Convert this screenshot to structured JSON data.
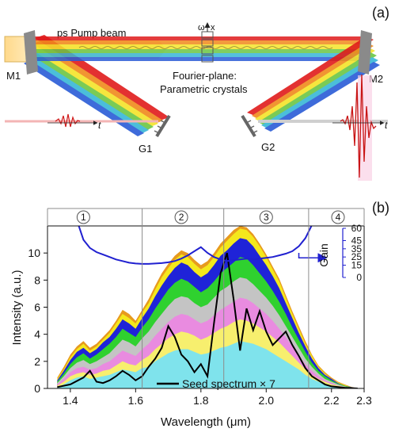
{
  "panel_a": {
    "label": "(a)",
    "pump_label": "ps Pump beam",
    "fourier_label_line1": "Fourier-plane:",
    "fourier_label_line2": "Parametric crystals",
    "axis_omega": "ω",
    "axis_x": "x",
    "m1": "M1",
    "m2": "M2",
    "g1": "G1",
    "g2": "G2",
    "time_symbol": "t",
    "colors": {
      "pump": "#ffd27f",
      "red": "#e01b1b",
      "orange": "#f08a1c",
      "yellow": "#f5e42a",
      "green": "#6cc644",
      "cyan": "#38b7d6",
      "blue": "#2a5bd7",
      "grating": "#7a7a7a"
    }
  },
  "chart_data": {
    "type": "area",
    "panel_label": "(b)",
    "xlabel": "Wavelength (μm)",
    "ylabel": "Intensity (a.u.)",
    "secondary_ylabel": "Gain",
    "xlim": [
      1.33,
      2.3
    ],
    "ylim": [
      0,
      12
    ],
    "x_ticks": [
      "1.4",
      "1.6",
      "1.8",
      "2.0",
      "2.2",
      "2.3"
    ],
    "x_tick_values": [
      1.4,
      1.6,
      1.8,
      2.0,
      2.2,
      2.3
    ],
    "y_ticks": [
      "0",
      "2",
      "4",
      "6",
      "8",
      "10"
    ],
    "y_tick_values": [
      0,
      2,
      4,
      6,
      8,
      10
    ],
    "gain_ticks": [
      "0",
      "15",
      "25",
      "35",
      "45",
      "60"
    ],
    "gain_tick_values": [
      0,
      15,
      25,
      35,
      45,
      60
    ],
    "section_lines": [
      1.62,
      1.87,
      2.13
    ],
    "section_labels": [
      "1",
      "2",
      "3",
      "4"
    ],
    "section_label_x": [
      1.44,
      1.74,
      2.0,
      2.22
    ],
    "legend": "Seed spectrum × 7",
    "x": [
      1.36,
      1.38,
      1.4,
      1.42,
      1.44,
      1.46,
      1.48,
      1.5,
      1.52,
      1.54,
      1.56,
      1.58,
      1.6,
      1.62,
      1.64,
      1.66,
      1.68,
      1.7,
      1.72,
      1.74,
      1.76,
      1.78,
      1.8,
      1.82,
      1.84,
      1.86,
      1.88,
      1.9,
      1.92,
      1.94,
      1.96,
      1.98,
      2.0,
      2.02,
      2.04,
      2.06,
      2.08,
      2.1,
      2.12,
      2.14,
      2.16,
      2.18,
      2.2,
      2.22,
      2.24,
      2.26,
      2.28
    ],
    "bands": [
      {
        "name": "cyan",
        "color": "#7fe3ec",
        "values": [
          0.1,
          0.3,
          0.6,
          0.8,
          0.9,
          0.7,
          0.8,
          0.9,
          1.0,
          1.2,
          1.4,
          1.3,
          1.2,
          1.5,
          1.6,
          2.0,
          2.3,
          2.6,
          2.8,
          2.9,
          2.9,
          2.7,
          2.5,
          2.6,
          2.8,
          3.0,
          3.1,
          3.3,
          3.5,
          3.4,
          3.3,
          3.1,
          2.9,
          2.6,
          2.3,
          2.0,
          1.7,
          1.4,
          1.0,
          0.7,
          0.5,
          0.3,
          0.2,
          0.1,
          0.05,
          0.02,
          0.0
        ]
      },
      {
        "name": "yellow",
        "color": "#f7ef6e",
        "values": [
          0.2,
          0.5,
          0.9,
          1.1,
          1.2,
          1.0,
          1.1,
          1.3,
          1.4,
          1.7,
          2.0,
          1.8,
          1.7,
          2.1,
          2.4,
          2.9,
          3.3,
          3.7,
          4.0,
          4.2,
          4.1,
          3.9,
          3.6,
          3.8,
          4.1,
          4.4,
          4.6,
          4.9,
          5.1,
          5.0,
          4.8,
          4.5,
          4.2,
          3.8,
          3.4,
          2.9,
          2.4,
          1.9,
          1.4,
          1.0,
          0.7,
          0.5,
          0.3,
          0.2,
          0.1,
          0.05,
          0.0
        ]
      },
      {
        "name": "pink",
        "color": "#e98be0",
        "values": [
          0.3,
          0.7,
          1.2,
          1.5,
          1.6,
          1.4,
          1.5,
          1.8,
          2.0,
          2.4,
          2.8,
          2.6,
          2.4,
          2.9,
          3.3,
          3.9,
          4.4,
          4.9,
          5.3,
          5.5,
          5.4,
          5.1,
          4.8,
          5.0,
          5.4,
          5.8,
          6.1,
          6.4,
          6.7,
          6.6,
          6.3,
          5.9,
          5.5,
          5.0,
          4.4,
          3.8,
          3.1,
          2.4,
          1.8,
          1.3,
          0.9,
          0.6,
          0.4,
          0.2,
          0.1,
          0.05,
          0.0
        ]
      },
      {
        "name": "gray",
        "color": "#c4c4c4",
        "values": [
          0.4,
          0.9,
          1.5,
          1.9,
          2.1,
          1.8,
          2.0,
          2.3,
          2.6,
          3.1,
          3.6,
          3.4,
          3.1,
          3.7,
          4.2,
          4.9,
          5.5,
          6.1,
          6.6,
          6.8,
          6.7,
          6.3,
          6.0,
          6.2,
          6.7,
          7.2,
          7.5,
          7.9,
          8.2,
          8.1,
          7.7,
          7.2,
          6.7,
          6.1,
          5.4,
          4.6,
          3.8,
          3.0,
          2.2,
          1.6,
          1.1,
          0.7,
          0.5,
          0.3,
          0.15,
          0.05,
          0.0
        ]
      },
      {
        "name": "green",
        "color": "#2fd12f",
        "values": [
          0.5,
          1.1,
          1.8,
          2.3,
          2.6,
          2.2,
          2.5,
          2.9,
          3.3,
          3.8,
          4.4,
          4.1,
          3.8,
          4.5,
          5.1,
          5.9,
          6.6,
          7.3,
          7.8,
          8.1,
          7.9,
          7.5,
          7.1,
          7.4,
          7.9,
          8.5,
          8.9,
          9.3,
          9.7,
          9.6,
          9.1,
          8.5,
          7.9,
          7.2,
          6.4,
          5.5,
          4.5,
          3.6,
          2.7,
          1.9,
          1.3,
          0.9,
          0.6,
          0.35,
          0.2,
          0.08,
          0.0
        ]
      },
      {
        "name": "blue",
        "color": "#1f23d8",
        "values": [
          0.6,
          1.3,
          2.1,
          2.7,
          3.0,
          2.6,
          2.9,
          3.4,
          3.8,
          4.4,
          5.1,
          4.8,
          4.4,
          5.2,
          5.9,
          6.8,
          7.6,
          8.3,
          8.9,
          9.3,
          9.1,
          8.6,
          8.2,
          8.5,
          9.1,
          9.8,
          10.2,
          10.7,
          11.1,
          11.0,
          10.5,
          9.8,
          9.1,
          8.3,
          7.4,
          6.3,
          5.2,
          4.1,
          3.1,
          2.2,
          1.5,
          1.0,
          0.7,
          0.4,
          0.2,
          0.1,
          0.0
        ]
      },
      {
        "name": "yellow2",
        "color": "#f4e81c",
        "values": [
          0.7,
          1.4,
          2.3,
          2.9,
          3.3,
          2.8,
          3.1,
          3.6,
          4.1,
          4.8,
          5.5,
          5.2,
          4.8,
          5.6,
          6.3,
          7.3,
          8.2,
          8.9,
          9.5,
          9.9,
          9.7,
          9.2,
          8.8,
          9.1,
          9.7,
          10.4,
          10.9,
          11.4,
          11.8,
          11.7,
          11.2,
          10.5,
          9.7,
          8.8,
          7.9,
          6.7,
          5.5,
          4.4,
          3.3,
          2.4,
          1.6,
          1.1,
          0.7,
          0.45,
          0.25,
          0.1,
          0.0
        ]
      },
      {
        "name": "orange",
        "color": "#e79a1e",
        "values": [
          0.8,
          1.6,
          2.5,
          3.1,
          3.5,
          3.0,
          3.3,
          3.8,
          4.3,
          5.0,
          5.8,
          5.5,
          5.0,
          5.8,
          6.6,
          7.6,
          8.5,
          9.2,
          9.8,
          10.2,
          10.0,
          9.5,
          9.1,
          9.4,
          10.0,
          10.7,
          11.2,
          11.7,
          12.0,
          11.9,
          11.4,
          10.7,
          9.9,
          9.0,
          8.1,
          6.9,
          5.7,
          4.6,
          3.5,
          2.5,
          1.7,
          1.2,
          0.8,
          0.5,
          0.3,
          0.12,
          0.0
        ]
      }
    ],
    "seed_x": [
      1.36,
      1.4,
      1.44,
      1.46,
      1.48,
      1.5,
      1.52,
      1.54,
      1.56,
      1.58,
      1.6,
      1.62,
      1.64,
      1.66,
      1.68,
      1.7,
      1.72,
      1.74,
      1.76,
      1.78,
      1.8,
      1.82,
      1.84,
      1.86,
      1.88,
      1.9,
      1.92,
      1.94,
      1.96,
      1.98,
      2.0,
      2.02,
      2.04,
      2.06,
      2.08,
      2.1,
      2.12,
      2.14,
      2.16,
      2.18,
      2.2,
      2.24,
      2.28
    ],
    "seed_y": [
      0.1,
      0.3,
      0.8,
      1.3,
      0.5,
      0.4,
      0.6,
      0.9,
      1.3,
      1.0,
      0.6,
      0.9,
      1.6,
      2.2,
      3.0,
      4.6,
      3.8,
      2.5,
      2.0,
      1.2,
      1.8,
      0.9,
      4.8,
      8.5,
      10.0,
      6.6,
      2.8,
      5.9,
      4.3,
      5.7,
      4.2,
      3.2,
      3.7,
      4.2,
      3.2,
      2.4,
      1.5,
      0.9,
      0.6,
      0.3,
      0.15,
      0.05,
      0.0
    ],
    "gain_x": [
      1.42,
      1.44,
      1.46,
      1.48,
      1.5,
      1.52,
      1.54,
      1.56,
      1.58,
      1.6,
      1.62,
      1.64,
      1.66,
      1.68,
      1.7,
      1.72,
      1.74,
      1.76,
      1.78,
      1.8,
      1.82,
      1.84,
      1.86,
      1.88,
      1.9,
      1.92,
      1.94,
      1.96,
      1.98,
      2.0,
      2.02,
      2.04,
      2.06,
      2.08,
      2.1,
      2.12,
      2.14
    ],
    "gain_y": [
      70,
      46,
      36,
      31,
      28,
      25,
      22,
      20,
      18,
      17,
      16.5,
      16.5,
      17,
      17.5,
      18.5,
      20,
      23,
      27,
      32,
      37,
      30,
      25,
      22,
      20,
      21,
      22,
      23,
      22,
      23,
      24,
      25,
      27,
      29,
      32,
      38,
      48,
      64
    ],
    "gain_ylim": [
      0,
      60
    ]
  }
}
